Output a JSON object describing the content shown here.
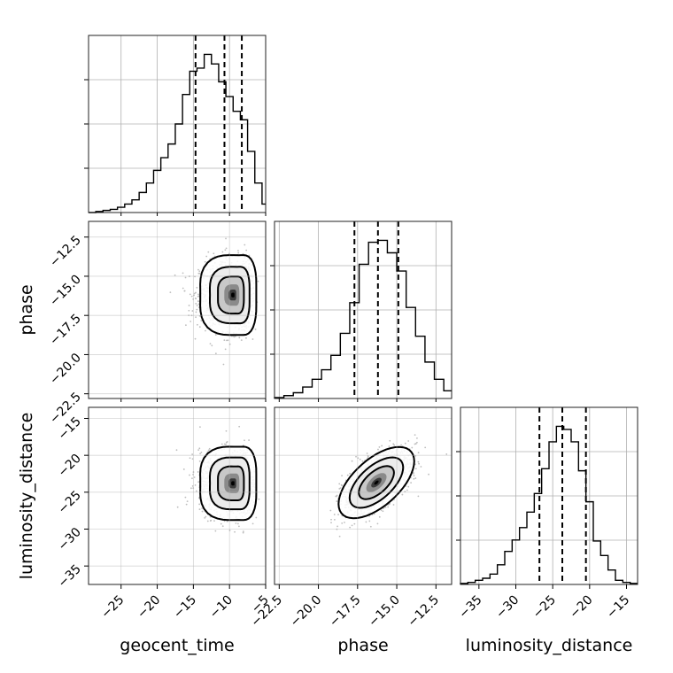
{
  "chart_data": {
    "type": "corner",
    "parameters": [
      "geocent_time",
      "phase",
      "luminosity_distance"
    ],
    "axis_labels": {
      "x": [
        "geocent_time",
        "phase",
        "luminosity_distance"
      ],
      "y": [
        "phase",
        "luminosity_distance"
      ]
    },
    "ranges": {
      "geocent_time": [
        -29.5,
        -5.0
      ],
      "phase": [
        -22.8,
        -11.5
      ],
      "luminosity_distance": [
        -37.5,
        -13.5
      ]
    },
    "ticks": {
      "geocent_time": [
        -25,
        -20,
        -15,
        -10,
        -5
      ],
      "phase": [
        -22.5,
        -20.0,
        -17.5,
        -15.0,
        -12.5
      ],
      "luminosity_distance": [
        -35,
        -30,
        -25,
        -20,
        -15
      ]
    },
    "tick_labels": {
      "geocent_time": [
        "−25",
        "−20",
        "−15",
        "−10",
        "−5"
      ],
      "phase": [
        "−22.5",
        "−20.0",
        "−17.5",
        "−15.0",
        "−12.5"
      ],
      "luminosity_distance": [
        "−35",
        "−30",
        "−25",
        "−20",
        "−15"
      ]
    },
    "quantiles": {
      "geocent_time": [
        -14.7,
        -10.7,
        -8.3
      ],
      "phase": [
        -17.7,
        -16.2,
        -14.9
      ],
      "luminosity_distance": [
        -26.8,
        -23.7,
        -20.5
      ]
    },
    "histograms": {
      "geocent_time": {
        "edges": [
          -29.5,
          -28.5,
          -27.5,
          -26.5,
          -25.5,
          -24.5,
          -23.5,
          -22.5,
          -21.5,
          -20.5,
          -19.5,
          -18.5,
          -17.5,
          -16.5,
          -15.5,
          -14.5,
          -13.5,
          -12.5,
          -11.5,
          -10.5,
          -9.5,
          -8.5,
          -7.5,
          -6.5,
          -5.5,
          -5.0
        ],
        "counts": [
          0,
          1,
          2,
          3,
          5,
          8,
          12,
          19,
          28,
          40,
          52,
          65,
          84,
          112,
          134,
          137,
          150,
          141,
          124,
          110,
          96,
          88,
          58,
          28,
          8
        ]
      },
      "phase": {
        "edges": [
          -22.8,
          -22.2,
          -21.6,
          -21.0,
          -20.4,
          -19.8,
          -19.2,
          -18.6,
          -18.0,
          -17.4,
          -16.8,
          -16.2,
          -15.6,
          -15.0,
          -14.4,
          -13.8,
          -13.2,
          -12.6,
          -12.0,
          -11.5
        ],
        "counts": [
          1,
          3,
          6,
          12,
          20,
          30,
          45,
          68,
          100,
          140,
          163,
          165,
          152,
          133,
          95,
          65,
          38,
          20,
          8
        ]
      },
      "luminosity_distance": {
        "edges": [
          -37.5,
          -36.5,
          -35.5,
          -34.5,
          -33.5,
          -32.5,
          -31.5,
          -30.5,
          -29.5,
          -28.5,
          -27.5,
          -26.5,
          -25.5,
          -24.5,
          -23.5,
          -22.5,
          -21.5,
          -20.5,
          -19.5,
          -18.5,
          -17.5,
          -16.5,
          -15.5,
          -14.5,
          -13.5
        ],
        "counts": [
          1,
          2,
          4,
          6,
          10,
          19,
          32,
          43,
          55,
          70,
          88,
          112,
          138,
          153,
          150,
          138,
          110,
          80,
          42,
          28,
          14,
          4,
          2,
          1
        ]
      }
    },
    "pairs": [
      {
        "x": "geocent_time",
        "y": "phase",
        "center": [
          -9.5,
          -16.2
        ],
        "spread": [
          4.2,
          2.0
        ],
        "correlation": 0.0,
        "skew": -0.6
      },
      {
        "x": "geocent_time",
        "y": "luminosity_distance",
        "center": [
          -9.5,
          -23.8
        ],
        "spread": [
          4.2,
          3.9
        ],
        "correlation": 0.0,
        "skew": -0.6
      },
      {
        "x": "phase",
        "y": "luminosity_distance",
        "center": [
          -16.3,
          -23.7
        ],
        "spread": [
          1.9,
          3.8
        ],
        "correlation": 0.6,
        "skew": 0.0
      }
    ],
    "grid": true
  }
}
